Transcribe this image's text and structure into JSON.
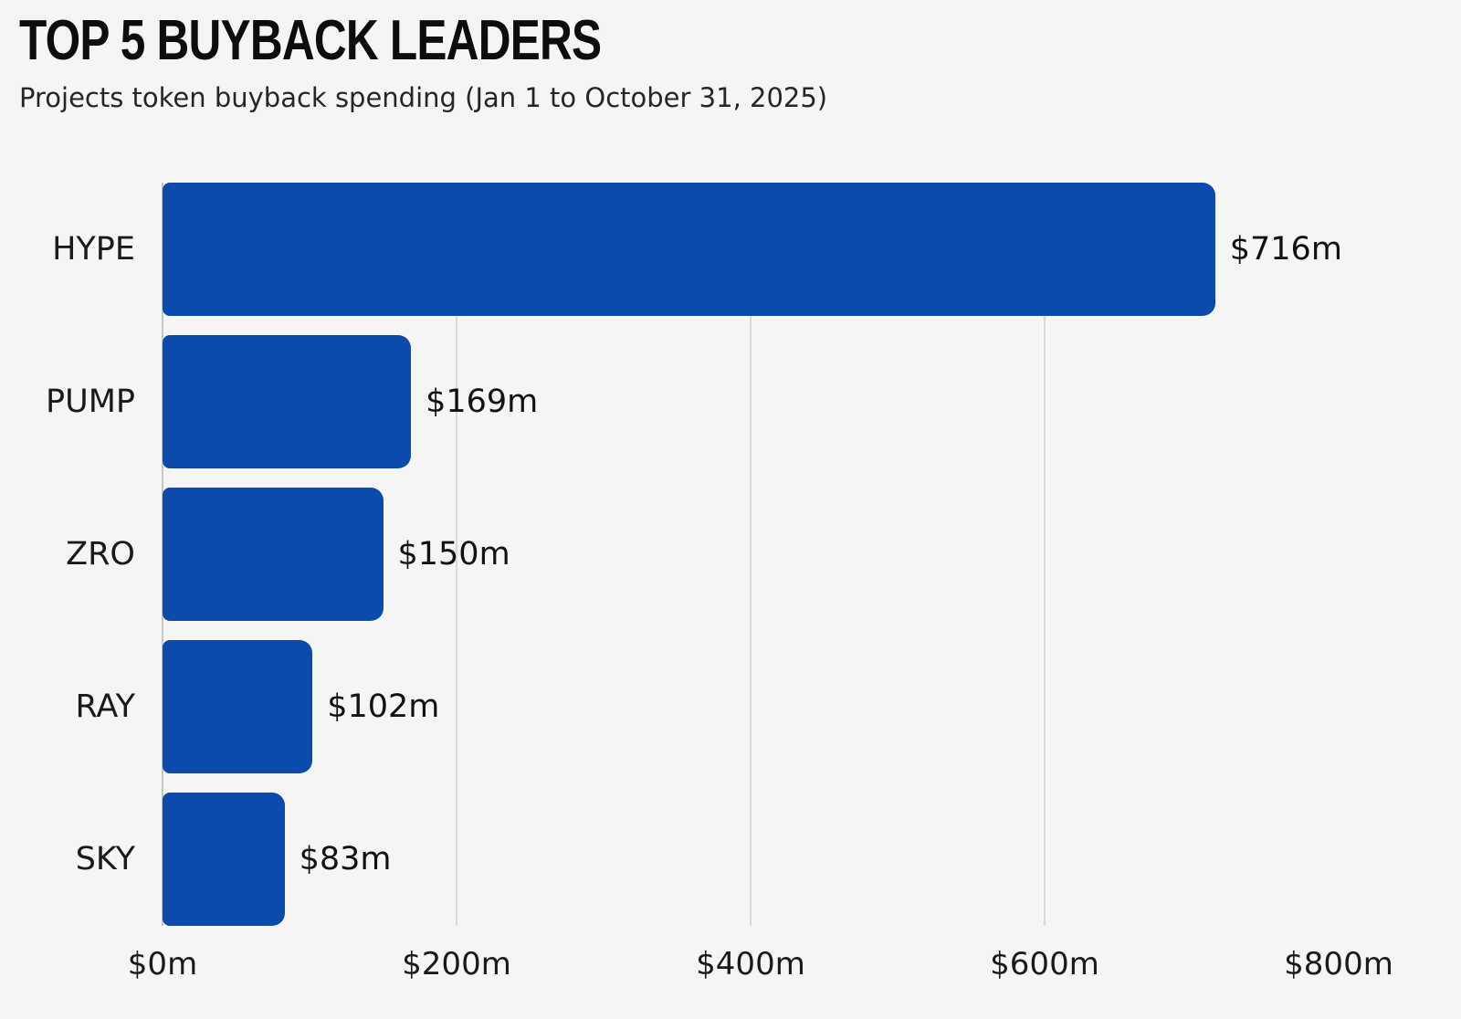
{
  "header": {
    "title": "TOP 5 BUYBACK LEADERS",
    "subtitle": "Projects token buyback spending (Jan 1 to October 31, 2025)"
  },
  "colors": {
    "background": "#f5f5f5",
    "bar": "#0b4bab",
    "gridline": "#dadada",
    "zero_axis_line": "#c6c6c6",
    "title_text": "#0d0d0d",
    "label_text": "#1a1a1a"
  },
  "chart_data": {
    "type": "bar",
    "orientation": "horizontal",
    "title": "TOP 5 BUYBACK LEADERS",
    "subtitle": "Projects token buyback spending (Jan 1 to October 31, 2025)",
    "xlabel": "",
    "ylabel": "",
    "categories": [
      "HYPE",
      "PUMP",
      "ZRO",
      "RAY",
      "SKY"
    ],
    "values": [
      716,
      169,
      150,
      102,
      83
    ],
    "value_labels": [
      "$716m",
      "$169m",
      "$150m",
      "$102m",
      "$83m"
    ],
    "unit": "million USD",
    "xlim": [
      0,
      800
    ],
    "x_tick_values": [
      0,
      200,
      400,
      600,
      800
    ],
    "x_tick_labels": [
      "$0m",
      "$200m",
      "$400m",
      "$600m",
      "$800m"
    ],
    "gridline_values": [
      200,
      400,
      600
    ],
    "zero_axis_value": 0,
    "grid": true,
    "legend": false
  }
}
